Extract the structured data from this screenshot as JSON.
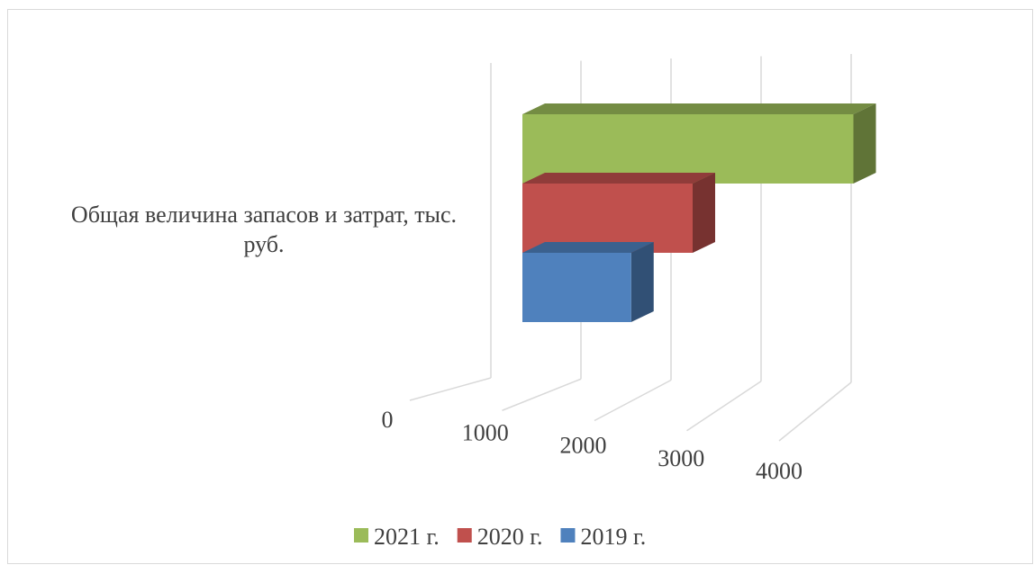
{
  "chart_data": {
    "type": "bar3d_horizontal",
    "categories": [
      "Общая величина запасов и затрат, тыс. руб."
    ],
    "series": [
      {
        "name": "2021 г.",
        "color": "#9bbb59",
        "values": [
          3500
        ]
      },
      {
        "name": "2020 г.",
        "color": "#c0504d",
        "values": [
          1800
        ]
      },
      {
        "name": "2019 г.",
        "color": "#4f81bd",
        "values": [
          1150
        ]
      }
    ],
    "xlim": [
      0,
      4000
    ],
    "xticks": [
      0,
      1000,
      2000,
      3000,
      4000
    ],
    "grid": true,
    "legend": "bottom"
  }
}
